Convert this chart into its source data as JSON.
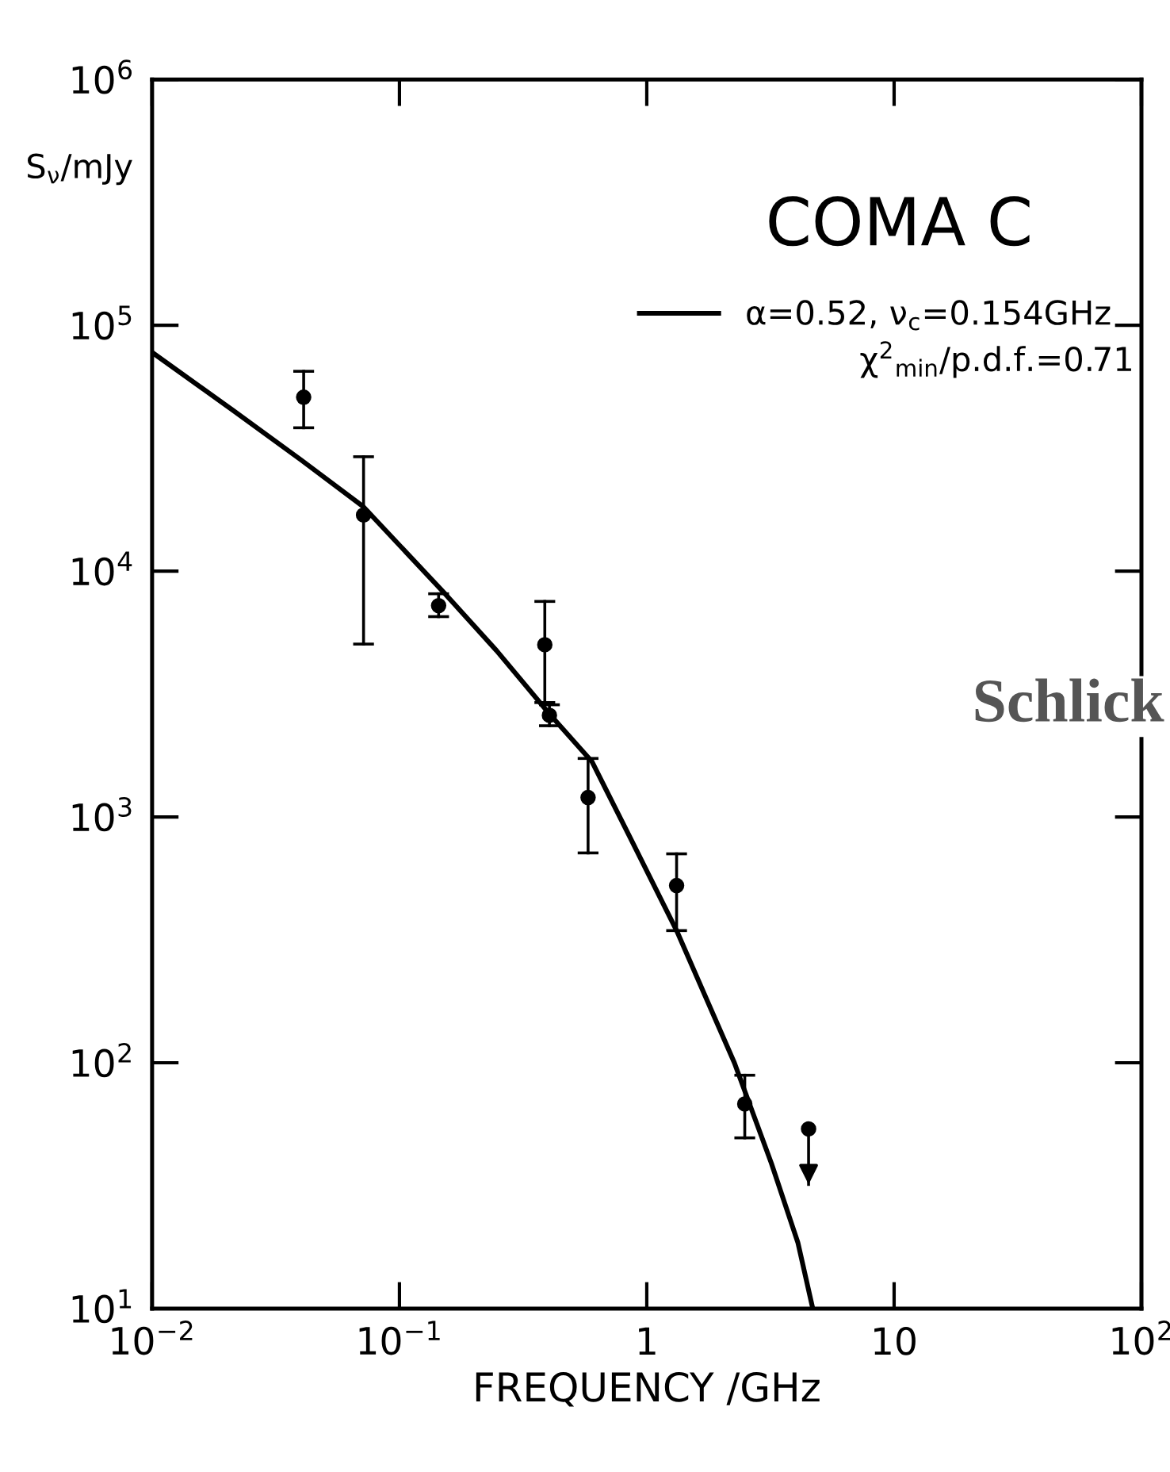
{
  "chart_data": {
    "type": "scatter",
    "title": "COMA C",
    "xlabel": "FREQUENCY /GHz",
    "ylabel": "S$_{ν}$/mJy",
    "log": "xy",
    "grid": false,
    "legend": "top right",
    "marker": "circle",
    "xlim": [
      0.01,
      100
    ],
    "ylim": [
      10,
      1000000
    ],
    "xticks": [
      {
        "value": 0.01,
        "label": "10$^{−2}$"
      },
      {
        "value": 0.1,
        "label": "10$^{−1}$"
      },
      1,
      10,
      {
        "value": 100,
        "label": "10$^{2}$"
      }
    ],
    "yticks": [
      {
        "value": 10,
        "label": "10$^{1}$"
      },
      {
        "value": 100,
        "label": "10$^{2}$"
      },
      {
        "value": 1000,
        "label": "10$^{3}$"
      },
      {
        "value": 10000,
        "label": "10$^{4}$"
      },
      {
        "value": 100000,
        "label": "10$^{5}$"
      },
      {
        "value": 1000000,
        "label": "10$^{6}$"
      }
    ],
    "series": [
      {
        "color": "#000000",
        "x": [
          0.041,
          0.0716,
          0.144,
          0.387,
          0.404,
          0.579,
          1.32,
          2.49
        ],
        "values": [
          51000,
          16900,
          7240,
          5020,
          2590,
          1200,
          526,
          68
        ],
        "errors": [
          [
            38300,
            65000
          ],
          [
            5050,
            29200
          ],
          [
            6530,
            8090
          ],
          [
            2920,
            7530
          ],
          [
            2350,
            2860
          ],
          [
            714,
            1730
          ],
          [
            345,
            708
          ],
          [
            49.5,
            89
          ]
        ]
      },
      {
        "color": "#000000",
        "marker": "circle",
        "x": [
          4.51
        ],
        "values": [
          53.8
        ],
        "errors": [
          [
            32,
            53.8
          ]
        ]
      },
      {
        "type": "line",
        "name": "α=0.52, ν$_{c}$=0.154GHz",
        "color": "#000000",
        "marker": "none",
        "line_style": "solid",
        "x": [
          0.01,
          0.0211,
          0.0401,
          0.0714,
          0.151,
          0.247,
          0.405,
          0.6,
          0.848,
          1.32,
          2.26,
          3.19,
          4.08,
          4.69
        ],
        "values": [
          77600,
          45300,
          28300,
          18300,
          8200,
          4750,
          2620,
          1680,
          841,
          345,
          100,
          39,
          18.6,
          10
        ]
      }
    ],
    "annotations": [
      "χ$^{2}$$_{min}$/p.d.f.=0.71",
      "Schlick"
    ]
  }
}
